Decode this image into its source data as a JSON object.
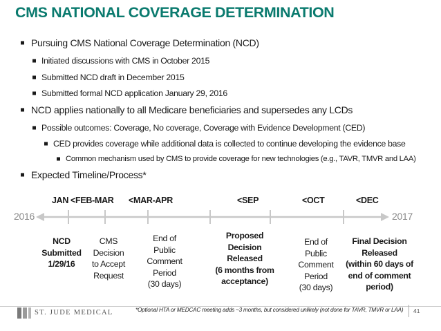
{
  "title": "CMS NATIONAL COVERAGE DETERMINATION",
  "bullets": [
    "Pursuing CMS National Coverage Determination (NCD)",
    "Initiated discussions with CMS in October 2015",
    "Submitted NCD draft in December 2015",
    "Submitted formal NCD application January 29, 2016",
    "NCD applies nationally to all Medicare beneficiaries and supersedes any LCDs",
    "Possible outcomes: Coverage, No coverage, Coverage with Evidence Development (CED)",
    "CED provides coverage while additional data is collected to continue developing the evidence base",
    "Common mechanism used by CMS to provide coverage for new technologies (e.g., TAVR, TMVR and LAA)",
    "Expected Timeline/Process*"
  ],
  "timeline": {
    "months": [
      "JAN",
      "<FEB-MAR",
      "<MAR-APR",
      "<SEP",
      "<OCT",
      "<DEC"
    ],
    "start_year": "2016",
    "end_year": "2017",
    "events": [
      "NCD\nSubmitted\n1/29/16",
      "CMS\nDecision\nto Accept\nRequest",
      "End of\nPublic\nComment\nPeriod\n(30 days)",
      "Proposed\nDecision\nReleased\n(6 months from\nacceptance)",
      "End of\nPublic\nComment\nPeriod\n(30 days)",
      "Final Decision\nReleased\n(within 60 days of\nend of comment\nperiod)"
    ]
  },
  "footer": {
    "logo": "ST. JUDE MEDICAL",
    "footnote": "*Optional HTA or MEDCAC meeting adds ~3 months, but considered unlikely (not done for TAVR, TMVR or LAA)",
    "page_number": "41"
  },
  "colors": {
    "title": "#0a7a6e",
    "timeline_line": "#c8c8c8",
    "year_text": "#8a8a8a"
  }
}
